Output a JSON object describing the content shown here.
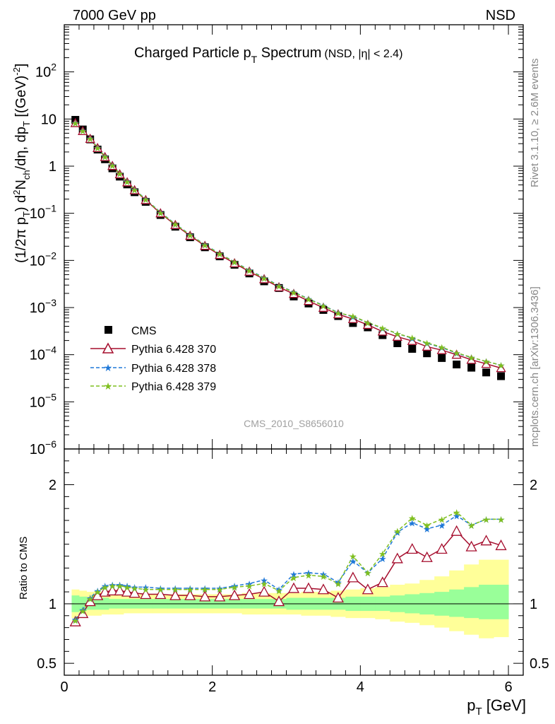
{
  "header": {
    "left": "7000 GeV pp",
    "right": "NSD"
  },
  "side_text": {
    "rivet": "Rivet 3.1.10, ≥ 2.6M events",
    "mcplots": "mcplots.cern.ch [arXiv:1306.3436]"
  },
  "colors": {
    "cms": "#000000",
    "p370": "#a50d2d",
    "p378": "#1f78d8",
    "p379": "#7fbf1f",
    "band_outer": "#ffff99",
    "band_inner": "#99ff99"
  },
  "chart_data": [
    {
      "type": "scatter",
      "panel": "main",
      "title": "Charged Particle p",
      "title_sub": "T",
      "title_tail": " Spectrum",
      "title_note": "(NSD, |η| < 2.4)",
      "ylabel": {
        "p1": "(1/2π p",
        "s1": "T",
        "p2": ") d",
        "s2": "2",
        "p3": "N",
        "s3": "ch",
        "p4": "/dη, dp",
        "s4": "T",
        "p5": " [(GeV)",
        "s5": "-2",
        "p6": "]"
      },
      "yscale": "log",
      "ylim": [
        1e-06,
        1000
      ],
      "xlim": [
        0,
        6.2
      ],
      "y_ticks": [
        {
          "value": 100,
          "base": "10",
          "exp": "2"
        },
        {
          "value": 10,
          "base": "10",
          "exp": ""
        },
        {
          "value": 1,
          "base": "1",
          "exp": ""
        },
        {
          "value": 0.1,
          "base": "10",
          "exp": "−1"
        },
        {
          "value": 0.01,
          "base": "10",
          "exp": "−2"
        },
        {
          "value": 0.001,
          "base": "10",
          "exp": "−3"
        },
        {
          "value": 0.0001,
          "base": "10",
          "exp": "−4"
        },
        {
          "value": 1e-05,
          "base": "10",
          "exp": "−5"
        },
        {
          "value": 1e-06,
          "base": "10",
          "exp": "−6"
        }
      ],
      "watermark": "CMS_2010_S8656010",
      "legend_position": "lower-left",
      "x": [
        0.15,
        0.25,
        0.35,
        0.45,
        0.55,
        0.65,
        0.75,
        0.85,
        0.95,
        1.1,
        1.3,
        1.5,
        1.7,
        1.9,
        2.1,
        2.3,
        2.5,
        2.7,
        2.9,
        3.1,
        3.3,
        3.5,
        3.7,
        3.9,
        4.1,
        4.3,
        4.5,
        4.7,
        4.9,
        5.1,
        5.3,
        5.5,
        5.7,
        5.9
      ],
      "series": [
        {
          "name": "CMS",
          "marker": "square",
          "style": "points",
          "values": [
            9.6,
            6.0,
            3.7,
            2.25,
            1.4,
            0.9,
            0.6,
            0.41,
            0.28,
            0.175,
            0.092,
            0.052,
            0.031,
            0.019,
            0.0122,
            0.0081,
            0.0053,
            0.0036,
            0.0026,
            0.00172,
            0.00122,
            0.00089,
            0.00066,
            0.00047,
            0.00038,
            0.00026,
            0.000175,
            0.000133,
            0.000107,
            8.5e-05,
            6.2e-05,
            5.3e-05,
            4.2e-05,
            3.5e-05
          ]
        },
        {
          "name": "Pythia 6.428 370",
          "marker": "triangle-open",
          "style": "solid",
          "values": [
            8.2,
            5.55,
            3.8,
            2.42,
            1.56,
            1.01,
            0.672,
            0.455,
            0.309,
            0.191,
            0.1,
            0.0565,
            0.0334,
            0.0204,
            0.0131,
            0.0087,
            0.0058,
            0.004,
            0.0027,
            0.00195,
            0.00138,
            0.00099,
            0.00072,
            0.00057,
            0.00043,
            0.00031,
            0.00024,
            0.000196,
            0.000148,
            0.000125,
            0.0001,
            7.8e-05,
            6.4e-05,
            5.2e-05
          ]
        },
        {
          "name": "Pythia 6.428 378",
          "marker": "star",
          "style": "dashed",
          "values": [
            8.3,
            5.7,
            3.9,
            2.5,
            1.61,
            1.05,
            0.7,
            0.473,
            0.321,
            0.199,
            0.105,
            0.0593,
            0.0352,
            0.0216,
            0.0139,
            0.0093,
            0.0062,
            0.0043,
            0.00292,
            0.00215,
            0.00153,
            0.00111,
            0.00078,
            0.00064,
            0.00048,
            0.00036,
            0.00028,
            0.000224,
            0.000175,
            0.000141,
            0.000108,
            8.7e-05,
            7.2e-05,
            6e-05
          ]
        },
        {
          "name": "Pythia 6.428 379",
          "marker": "star",
          "style": "dashed",
          "values": [
            8.25,
            5.65,
            3.85,
            2.47,
            1.59,
            1.04,
            0.69,
            0.466,
            0.316,
            0.196,
            0.103,
            0.0585,
            0.0347,
            0.0213,
            0.0137,
            0.0092,
            0.0061,
            0.0042,
            0.00288,
            0.00211,
            0.00151,
            0.00109,
            0.00077,
            0.00066,
            0.00048,
            0.00037,
            0.00028,
            0.000229,
            0.000178,
            0.000145,
            0.00011,
            8.8e-05,
            7.2e-05,
            6e-05
          ]
        }
      ]
    },
    {
      "type": "line",
      "panel": "ratio",
      "ylabel": "Ratio to CMS",
      "xlabel": "p",
      "xlabel_sub": "T",
      "xlabel_unit": " [GeV]",
      "ylim": [
        0.4,
        2.3
      ],
      "xlim": [
        0,
        6.2
      ],
      "y_ticks": [
        2,
        1,
        0.5
      ],
      "y_tick_labels": [
        "2",
        "1",
        "0.5"
      ],
      "x_ticks": [
        0,
        2,
        4,
        6
      ],
      "x_tick_labels": [
        "0",
        "2",
        "4",
        "6"
      ],
      "band_outer_lo": [
        0.88,
        0.89,
        0.9,
        0.9,
        0.91,
        0.91,
        0.91,
        0.92,
        0.92,
        0.92,
        0.92,
        0.92,
        0.92,
        0.92,
        0.92,
        0.92,
        0.91,
        0.91,
        0.91,
        0.91,
        0.9,
        0.9,
        0.89,
        0.88,
        0.88,
        0.87,
        0.85,
        0.84,
        0.82,
        0.8,
        0.77,
        0.74,
        0.71,
        0.72
      ],
      "band_outer_hi": [
        1.12,
        1.11,
        1.1,
        1.1,
        1.09,
        1.09,
        1.09,
        1.08,
        1.08,
        1.08,
        1.08,
        1.08,
        1.08,
        1.08,
        1.08,
        1.08,
        1.09,
        1.09,
        1.09,
        1.09,
        1.1,
        1.1,
        1.11,
        1.12,
        1.13,
        1.14,
        1.16,
        1.17,
        1.2,
        1.23,
        1.28,
        1.33,
        1.37,
        1.37
      ],
      "band_inner_lo": [
        0.93,
        0.94,
        0.95,
        0.95,
        0.95,
        0.96,
        0.96,
        0.96,
        0.96,
        0.96,
        0.96,
        0.96,
        0.96,
        0.96,
        0.96,
        0.96,
        0.96,
        0.96,
        0.96,
        0.95,
        0.95,
        0.95,
        0.95,
        0.94,
        0.94,
        0.94,
        0.93,
        0.92,
        0.91,
        0.9,
        0.89,
        0.88,
        0.87,
        0.87
      ],
      "band_inner_hi": [
        1.07,
        1.06,
        1.05,
        1.05,
        1.05,
        1.04,
        1.04,
        1.04,
        1.04,
        1.04,
        1.04,
        1.04,
        1.04,
        1.04,
        1.04,
        1.04,
        1.04,
        1.04,
        1.04,
        1.05,
        1.05,
        1.05,
        1.05,
        1.06,
        1.06,
        1.06,
        1.07,
        1.08,
        1.09,
        1.1,
        1.12,
        1.14,
        1.16,
        1.16
      ],
      "series": [
        {
          "name": "Pythia 6.428 370",
          "values": [
            0.85,
            0.92,
            1.02,
            1.07,
            1.1,
            1.11,
            1.11,
            1.1,
            1.09,
            1.08,
            1.08,
            1.07,
            1.07,
            1.06,
            1.06,
            1.07,
            1.08,
            1.1,
            1.02,
            1.13,
            1.13,
            1.12,
            1.05,
            1.22,
            1.12,
            1.18,
            1.38,
            1.46,
            1.39,
            1.46,
            1.61,
            1.48,
            1.53,
            1.49
          ]
        },
        {
          "name": "Pythia 6.428 378",
          "values": [
            0.87,
            0.95,
            1.05,
            1.11,
            1.15,
            1.16,
            1.16,
            1.15,
            1.14,
            1.14,
            1.13,
            1.13,
            1.13,
            1.13,
            1.13,
            1.15,
            1.17,
            1.2,
            1.12,
            1.25,
            1.26,
            1.25,
            1.18,
            1.36,
            1.26,
            1.38,
            1.6,
            1.68,
            1.63,
            1.66,
            1.74,
            1.66,
            1.71,
            1.71
          ]
        },
        {
          "name": "Pythia 6.428 379",
          "values": [
            0.86,
            0.94,
            1.04,
            1.1,
            1.14,
            1.15,
            1.15,
            1.14,
            1.13,
            1.12,
            1.12,
            1.12,
            1.12,
            1.12,
            1.12,
            1.14,
            1.15,
            1.17,
            1.11,
            1.22,
            1.24,
            1.23,
            1.17,
            1.4,
            1.26,
            1.42,
            1.61,
            1.72,
            1.66,
            1.71,
            1.77,
            1.66,
            1.71,
            1.71
          ]
        }
      ]
    }
  ]
}
